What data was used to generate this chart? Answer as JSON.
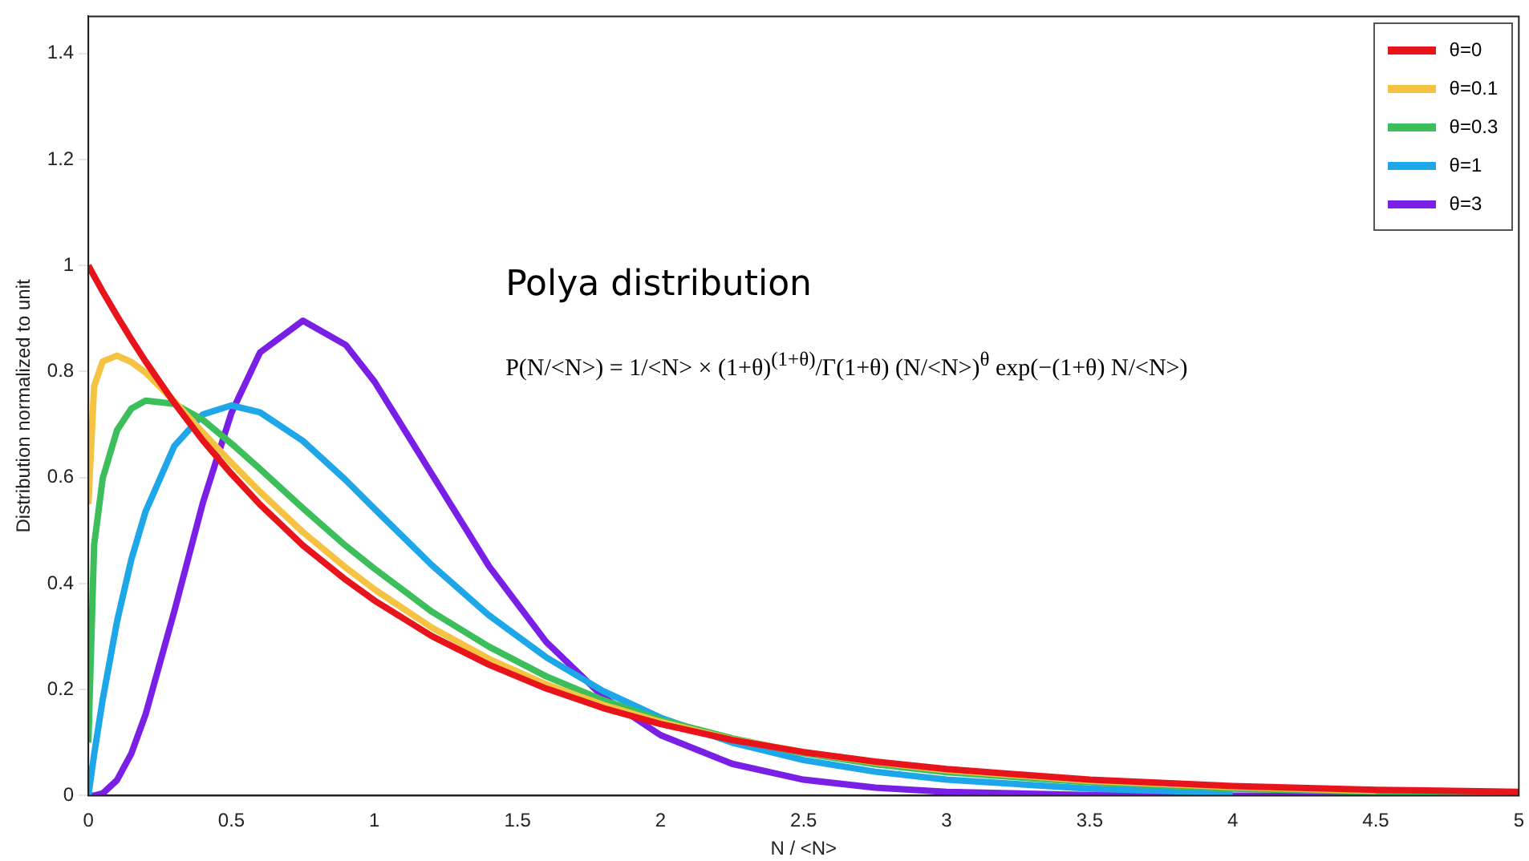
{
  "chart_data": {
    "type": "line",
    "xlabel": "N / <N>",
    "ylabel": "Distribution normalized to unit",
    "annotations": [
      "Polya distribution",
      "P(N/<N>) = 1/<N> × (1+θ)$^{(1+θ)}$/Γ(1+θ) (N/<N>)$^{θ}$ exp(−(1+θ) N/<N>)"
    ],
    "x": [
      0,
      0.02,
      0.05,
      0.1,
      0.15,
      0.2,
      0.3,
      0.4,
      0.5,
      0.6,
      0.75,
      0.9,
      1,
      1.2,
      1.4,
      1.6,
      1.8,
      2,
      2.25,
      2.5,
      2.75,
      3,
      3.5,
      4,
      4.5,
      5
    ],
    "series": [
      {
        "name": "θ=0",
        "color": "#e8141b",
        "values": [
          1,
          0.98,
          0.951,
          0.905,
          0.861,
          0.819,
          0.741,
          0.67,
          0.607,
          0.549,
          0.472,
          0.407,
          0.368,
          0.301,
          0.247,
          0.202,
          0.165,
          0.135,
          0.105,
          0.082,
          0.064,
          0.05,
          0.03,
          0.018,
          0.011,
          0.007
        ]
      },
      {
        "name": "θ=0.1",
        "color": "#f5c242",
        "values": [
          0.55,
          0.772,
          0.819,
          0.83,
          0.818,
          0.798,
          0.744,
          0.685,
          0.628,
          0.573,
          0.497,
          0.43,
          0.389,
          0.317,
          0.258,
          0.21,
          0.171,
          0.139,
          0.106,
          0.082,
          0.063,
          0.048,
          0.028,
          0.016,
          0.009,
          null
        ]
      },
      {
        "name": "θ=0.3",
        "color": "#3cbf5a",
        "values": [
          0.1,
          0.472,
          0.598,
          0.689,
          0.73,
          0.745,
          0.739,
          0.709,
          0.664,
          0.616,
          0.542,
          0.471,
          0.428,
          0.347,
          0.281,
          0.225,
          0.18,
          0.143,
          0.108,
          0.08,
          0.059,
          0.044,
          0.025,
          0.013,
          0.007,
          0.004
        ]
      },
      {
        "name": "θ=1",
        "color": "#1ea7e8",
        "values": [
          0,
          0.077,
          0.181,
          0.328,
          0.445,
          0.536,
          0.659,
          0.719,
          0.736,
          0.723,
          0.669,
          0.595,
          0.541,
          0.435,
          0.34,
          0.261,
          0.197,
          0.147,
          0.1,
          0.067,
          0.045,
          0.03,
          0.013,
          0.005,
          null,
          null
        ]
      },
      {
        "name": "θ=3",
        "color": "#7a1fe6",
        "values": [
          0,
          0,
          0.004,
          0.029,
          0.079,
          0.153,
          0.347,
          0.552,
          0.722,
          0.836,
          0.896,
          0.85,
          0.781,
          0.607,
          0.433,
          0.29,
          0.186,
          0.114,
          0.06,
          0.03,
          0.015,
          0.007,
          0.001,
          0,
          0,
          0
        ]
      }
    ],
    "xlim": [
      0,
      5
    ],
    "xticks": [
      0,
      0.5,
      1,
      1.5,
      2,
      2.5,
      3,
      3.5,
      4,
      4.5,
      5
    ],
    "ylim": [
      0,
      1.47
    ],
    "yticks": [
      0,
      0.2,
      0.4,
      0.6,
      0.8,
      1,
      1.2,
      1.4
    ],
    "grid": false,
    "legend": "top right",
    "marker": "none",
    "line_style": "solid"
  }
}
